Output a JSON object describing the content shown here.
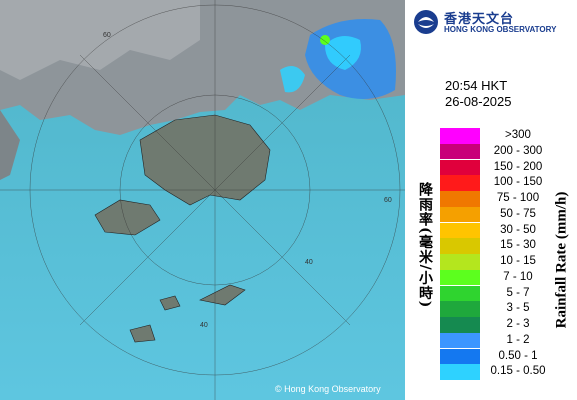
{
  "header": {
    "org_zh": "香港天文台",
    "org_en": "HONG KONG OBSERVATORY",
    "time": "20:54 HKT",
    "date": "26-08-2025"
  },
  "map": {
    "ring_labels": [
      "60",
      "60",
      "40",
      "40"
    ],
    "copyright": "© Hong Kong Observatory"
  },
  "legend": {
    "title_zh": "降雨率(毫米/小時)",
    "title_en": "Rainfall Rate (mm/h)",
    "items": [
      {
        "label": ">300",
        "color": "#ff00ff"
      },
      {
        "label": "200 - 300",
        "color": "#c8007a"
      },
      {
        "label": "150 - 200",
        "color": "#e0003c"
      },
      {
        "label": "100 - 150",
        "color": "#ff1a1a"
      },
      {
        "label": "75 - 100",
        "color": "#f07800"
      },
      {
        "label": "50 - 75",
        "color": "#f5a000"
      },
      {
        "label": "30 - 50",
        "color": "#ffc400"
      },
      {
        "label": "15 - 30",
        "color": "#d9c800"
      },
      {
        "label": "10 - 15",
        "color": "#b4e61e"
      },
      {
        "label": "7 - 10",
        "color": "#5cff1e"
      },
      {
        "label": "5 - 7",
        "color": "#2fd42f"
      },
      {
        "label": "3 - 5",
        "color": "#1fa83c"
      },
      {
        "label": "2 - 3",
        "color": "#158a50"
      },
      {
        "label": "1 - 2",
        "color": "#3c96ff"
      },
      {
        "label": "0.50 - 1",
        "color": "#1478f0"
      },
      {
        "label": "0.15 - 0.50",
        "color": "#2ed2ff"
      }
    ]
  }
}
